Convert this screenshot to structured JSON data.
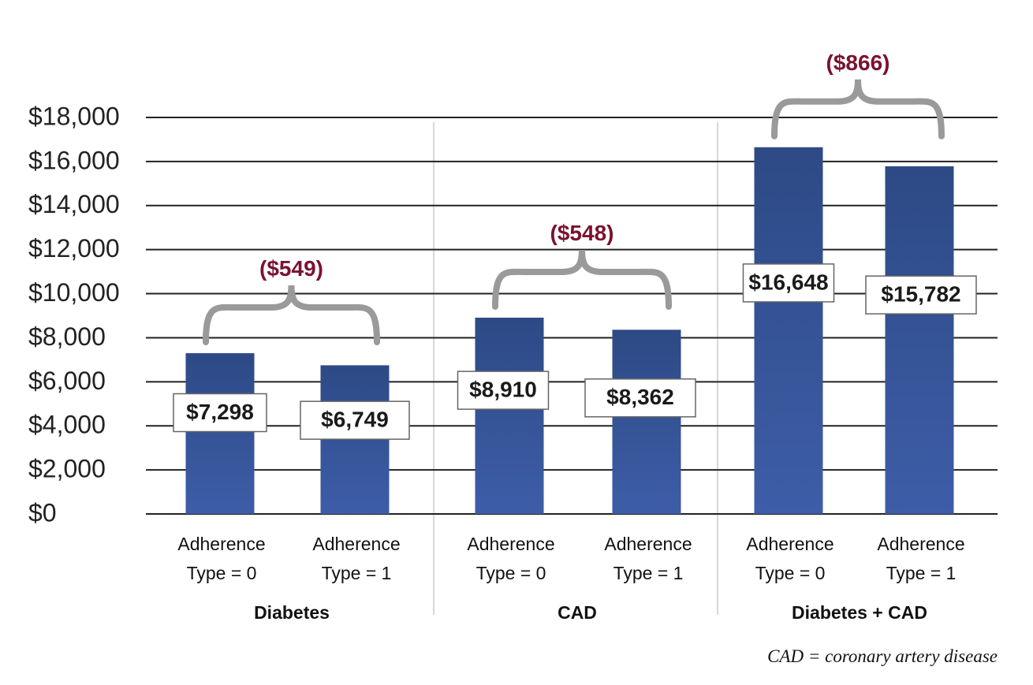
{
  "chart_data": {
    "type": "bar",
    "ylim": [
      0,
      18000
    ],
    "yticks": [
      0,
      2000,
      4000,
      6000,
      8000,
      10000,
      12000,
      14000,
      16000,
      18000
    ],
    "ytick_labels": [
      "$0",
      "$2,000",
      "$4,000",
      "$6,000",
      "$8,000",
      "$10,000",
      "$12,000",
      "$14,000",
      "$16,000",
      "$18,000"
    ],
    "grid": true,
    "groups": [
      {
        "name": "Diabetes",
        "bars": [
          {
            "label_line1": "Adherence",
            "label_line2": "Type = 0",
            "value": 7298,
            "value_label": "$7,298"
          },
          {
            "label_line1": "Adherence",
            "label_line2": "Type = 1",
            "value": 6749,
            "value_label": "$6,749"
          }
        ],
        "difference_label": "($549)"
      },
      {
        "name": "CAD",
        "bars": [
          {
            "label_line1": "Adherence",
            "label_line2": "Type = 0",
            "value": 8910,
            "value_label": "$8,910"
          },
          {
            "label_line1": "Adherence",
            "label_line2": "Type = 1",
            "value": 8362,
            "value_label": "$8,362"
          }
        ],
        "difference_label": "($548)"
      },
      {
        "name": "Diabetes + CAD",
        "bars": [
          {
            "label_line1": "Adherence",
            "label_line2": "Type = 0",
            "value": 16648,
            "value_label": "$16,648"
          },
          {
            "label_line1": "Adherence",
            "label_line2": "Type = 1",
            "value": 15782,
            "value_label": "$15,782"
          }
        ],
        "difference_label": "($866)"
      }
    ],
    "footnote": "CAD = coronary artery disease",
    "colors": {
      "bar_top": "#2d4a85",
      "bar_bottom": "#3d5da8",
      "bracket": "#9a9a9a",
      "difference": "#7a1230",
      "gridline": "#222222",
      "divider": "#cccccc"
    }
  }
}
